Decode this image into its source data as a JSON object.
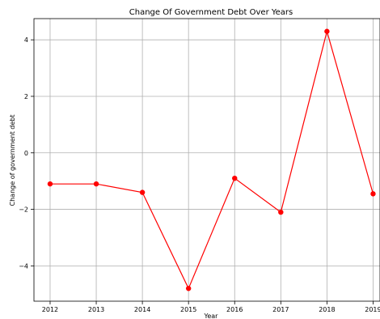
{
  "chart_data": {
    "type": "line",
    "title": "Change Of Government Debt Over Years",
    "xlabel": "Year",
    "ylabel": "Change of government debt",
    "x": [
      "2012",
      "2013",
      "2014",
      "2015",
      "2016",
      "2017",
      "2018",
      "2019"
    ],
    "series": [
      {
        "values": [
          -1.1,
          -1.1,
          -1.4,
          -4.8,
          -0.9,
          -2.1,
          4.3,
          -1.45
        ],
        "color": "#ff0000",
        "marker": "circle"
      }
    ],
    "x_ticks": [
      "2012",
      "2013",
      "2014",
      "2015",
      "2016",
      "2017",
      "2018",
      "2019"
    ],
    "y_ticks": [
      -4,
      -2,
      0,
      2,
      4
    ],
    "y_tick_labels": [
      "−4",
      "−2",
      "0",
      "2",
      "4"
    ],
    "xlim": [
      2011.65,
      2019.15
    ],
    "ylim": [
      -5.25,
      4.75
    ],
    "grid": true
  }
}
